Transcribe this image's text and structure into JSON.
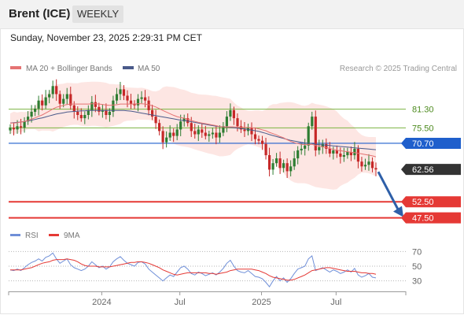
{
  "header": {
    "instrument": "Brent (ICE)",
    "period": "WEEKLY"
  },
  "timestamp": "Sunday, November 23, 2025 2:29:31 PM CET",
  "copyright": "Research © 2025 Trading Central",
  "legend": {
    "ma20_label": "MA 20 + Bollinger Bands",
    "ma50_label": "MA 50",
    "rsi_label": "RSI",
    "rsi9_label": "9MA"
  },
  "colors": {
    "candle_up": "#2e7d32",
    "candle_down": "#c62828",
    "ma20": "#e57373",
    "bollinger_fill": "#fde6e3",
    "ma50": "#4a5a8a",
    "pivot": "#1f5fcc",
    "resistance": "#7cb342",
    "support": "#e53935",
    "last_price_tag": "#333333",
    "arrow": "#2e5fa8",
    "rsi": "#6f8fd8",
    "rsi_ma": "#e53935"
  },
  "chart_data": [
    {
      "type": "candlestick",
      "title": "Brent (ICE)",
      "timeframe": "weekly",
      "x_labels": [
        "2024",
        "Jul",
        "2025",
        "Jul"
      ],
      "ylim": [
        43,
        92
      ],
      "levels": [
        {
          "value": 81.3,
          "label": "81.30",
          "kind": "resistance"
        },
        {
          "value": 75.5,
          "label": "75.50",
          "kind": "resistance"
        },
        {
          "value": 70.7,
          "label": "70.70",
          "kind": "pivot"
        },
        {
          "value": 62.56,
          "label": "62.56",
          "kind": "last_price"
        },
        {
          "value": 52.5,
          "label": "52.50",
          "kind": "support"
        },
        {
          "value": 47.5,
          "label": "47.50",
          "kind": "support"
        }
      ],
      "close_series": [
        75.5,
        75.0,
        76.0,
        75.6,
        77.5,
        79.0,
        80.5,
        81.5,
        84.0,
        82.5,
        85.0,
        86.0,
        88.5,
        86.0,
        83.0,
        84.5,
        86.0,
        82.5,
        80.5,
        79.5,
        78.5,
        79.5,
        81.0,
        83.5,
        82.0,
        80.5,
        81.0,
        79.5,
        80.5,
        84.0,
        86.0,
        87.5,
        85.5,
        84.0,
        83.0,
        82.5,
        84.5,
        85.0,
        84.0,
        81.0,
        79.0,
        77.0,
        74.5,
        71.0,
        72.5,
        74.0,
        73.0,
        75.0,
        77.5,
        78.5,
        77.0,
        74.5,
        73.5,
        75.0,
        74.0,
        73.0,
        73.5,
        74.0,
        72.5,
        74.0,
        76.0,
        79.0,
        81.0,
        78.5,
        76.0,
        75.0,
        74.5,
        75.5,
        73.5,
        72.0,
        71.5,
        70.5,
        67.0,
        62.5,
        64.5,
        66.0,
        63.0,
        64.5,
        62.0,
        63.5,
        66.0,
        68.5,
        69.0,
        70.0,
        76.0,
        79.0,
        68.5,
        69.5,
        70.5,
        69.0,
        67.5,
        68.5,
        67.5,
        66.5,
        67.0,
        68.0,
        67.0,
        69.0,
        65.0,
        63.5,
        64.0,
        65.0,
        63.0,
        62.56
      ],
      "ma20_series": [
        77.0,
        77.0,
        77.1,
        77.3,
        77.5,
        77.8,
        78.2,
        78.6,
        79.1,
        79.5,
        80.1,
        80.7,
        81.4,
        81.9,
        82.2,
        82.5,
        82.8,
        82.9,
        82.9,
        82.9,
        82.9,
        82.9,
        82.9,
        83.0,
        83.0,
        82.9,
        82.8,
        82.6,
        82.5,
        82.6,
        82.7,
        82.9,
        82.9,
        82.9,
        82.9,
        82.9,
        83.0,
        83.0,
        82.9,
        82.7,
        82.4,
        82.0,
        81.5,
        80.9,
        80.4,
        79.9,
        79.4,
        79.0,
        78.7,
        78.5,
        78.2,
        77.8,
        77.5,
        77.2,
        77.0,
        76.8,
        76.6,
        76.4,
        76.2,
        75.9,
        75.8,
        75.8,
        75.8,
        75.8,
        75.7,
        75.7,
        75.6,
        75.6,
        75.5,
        75.4,
        75.2,
        74.9,
        74.6,
        74.1,
        73.7,
        73.3,
        72.8,
        72.4,
        71.8,
        71.3,
        70.9,
        70.6,
        70.4,
        70.3,
        70.3,
        70.4,
        70.0,
        69.8,
        69.6,
        69.4,
        69.1,
        68.8,
        68.5,
        68.4,
        68.2,
        68.1,
        67.9,
        67.8,
        67.6,
        67.4,
        67.2,
        67.0,
        66.8,
        66.5
      ],
      "ma50_series": [
        77.0,
        77.1,
        77.2,
        77.3,
        77.5,
        77.7,
        77.9,
        78.1,
        78.4,
        78.6,
        78.9,
        79.2,
        79.5,
        79.8,
        80.0,
        80.2,
        80.4,
        80.5,
        80.6,
        80.7,
        80.8,
        80.8,
        80.9,
        80.9,
        80.9,
        80.9,
        80.9,
        80.9,
        80.9,
        80.9,
        80.9,
        80.9,
        80.9,
        80.8,
        80.7,
        80.5,
        80.3,
        80.1,
        79.9,
        79.7,
        79.5,
        79.3,
        79.1,
        78.9,
        78.7,
        78.5,
        78.3,
        78.1,
        77.9,
        77.8,
        77.6,
        77.4,
        77.2,
        77.0,
        76.8,
        76.6,
        76.4,
        76.2,
        76.0,
        75.9,
        75.8,
        75.7,
        75.6,
        75.5,
        75.4,
        75.3,
        75.2,
        75.0,
        74.8,
        74.6,
        74.4,
        74.1,
        73.8,
        73.4,
        73.1,
        72.8,
        72.5,
        72.2,
        71.9,
        71.6,
        71.4,
        71.2,
        71.0,
        70.8,
        70.7,
        70.6,
        70.4,
        70.3,
        70.2,
        70.1,
        70.0,
        69.9,
        69.8,
        69.7,
        69.6,
        69.5,
        69.4,
        69.3,
        69.2,
        69.1,
        69.0,
        68.9,
        68.8,
        68.7
      ],
      "forecast_arrow": {
        "from": 62.56,
        "to": 47.5
      }
    },
    {
      "type": "line",
      "title": "RSI",
      "yticks": [
        70,
        50,
        30
      ],
      "ylim": [
        20,
        80
      ],
      "series": [
        {
          "name": "RSI",
          "values": [
            45,
            44,
            46,
            44,
            48,
            52,
            55,
            57,
            60,
            57,
            62,
            64,
            68,
            60,
            54,
            57,
            60,
            52,
            48,
            46,
            44,
            46,
            50,
            56,
            52,
            48,
            50,
            46,
            49,
            56,
            60,
            63,
            58,
            54,
            52,
            50,
            55,
            56,
            53,
            46,
            42,
            38,
            34,
            30,
            34,
            38,
            36,
            42,
            48,
            50,
            46,
            40,
            38,
            42,
            40,
            37,
            39,
            41,
            38,
            42,
            47,
            54,
            58,
            50,
            44,
            42,
            41,
            44,
            40,
            36,
            35,
            33,
            28,
            22,
            30,
            36,
            30,
            34,
            28,
            33,
            40,
            46,
            48,
            50,
            60,
            64,
            44,
            46,
            48,
            45,
            42,
            45,
            43,
            40,
            42,
            45,
            42,
            47,
            38,
            35,
            37,
            40,
            35,
            34
          ]
        },
        {
          "name": "9MA",
          "values": [
            45,
            45,
            45,
            45,
            46,
            47,
            48,
            50,
            52,
            54,
            55,
            56,
            58,
            59,
            59,
            59,
            60,
            59,
            58,
            56,
            53,
            51,
            50,
            50,
            50,
            49,
            49,
            49,
            49,
            50,
            51,
            52,
            53,
            54,
            55,
            55,
            56,
            56,
            55,
            54,
            52,
            50,
            48,
            45,
            43,
            41,
            39,
            38,
            39,
            40,
            41,
            41,
            41,
            41,
            41,
            41,
            40,
            40,
            39,
            40,
            41,
            42,
            44,
            45,
            46,
            46,
            46,
            46,
            46,
            45,
            44,
            42,
            40,
            37,
            35,
            34,
            33,
            32,
            31,
            31,
            32,
            34,
            36,
            38,
            41,
            44,
            45,
            46,
            47,
            48,
            48,
            47,
            46,
            45,
            44,
            43,
            43,
            43,
            42,
            41,
            41,
            40,
            40,
            39
          ]
        }
      ]
    }
  ]
}
